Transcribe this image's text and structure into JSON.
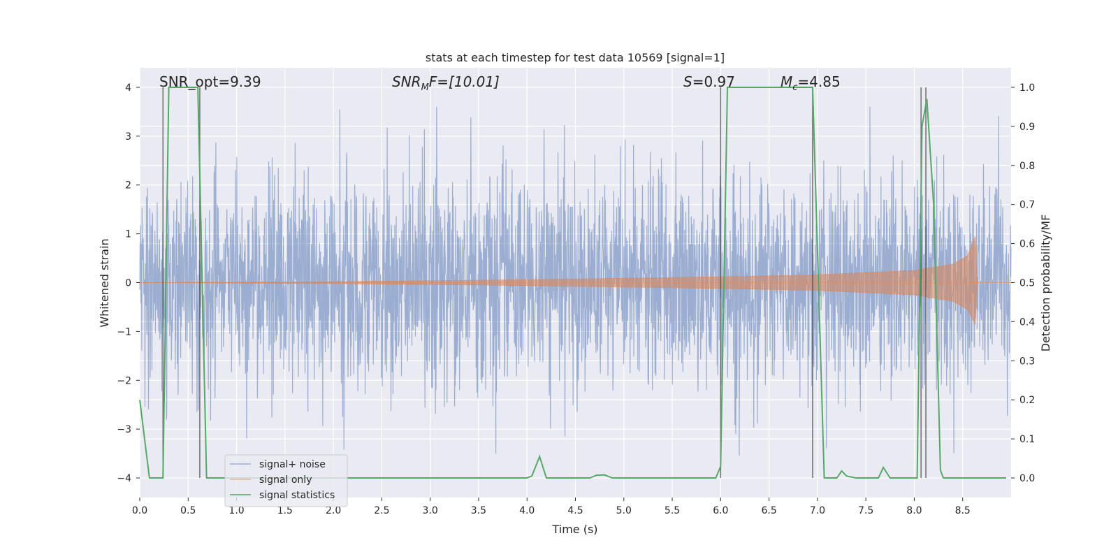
{
  "chart_data": {
    "type": "line",
    "title": "stats at each timestep for test data 10569 [signal=1]",
    "xlabel": "Time (s)",
    "ylabel_left": "Whitened strain",
    "ylabel_right": "Detection probability/MF",
    "xlim": [
      0.0,
      9.0
    ],
    "ylim_left": [
      -4.4,
      4.4
    ],
    "ylim_right": [
      -0.05,
      1.05
    ],
    "x_ticks": [
      "0.0",
      "0.5",
      "1.0",
      "1.5",
      "2.0",
      "2.5",
      "3.0",
      "3.5",
      "4.0",
      "4.5",
      "5.0",
      "5.5",
      "6.0",
      "6.5",
      "7.0",
      "7.5",
      "8.0",
      "8.5"
    ],
    "y_left_ticks": [
      "−4",
      "−3",
      "−2",
      "−1",
      "0",
      "1",
      "2",
      "3",
      "4"
    ],
    "y_right_ticks": [
      "0.0",
      "0.1",
      "0.2",
      "0.3",
      "0.4",
      "0.5",
      "0.6",
      "0.7",
      "0.8",
      "0.9",
      "1.0"
    ],
    "grid": true,
    "background": "#eaeaf2",
    "annotations": {
      "snr_opt": "SNR_opt=9.39",
      "snr_mf_base": "SNR",
      "snr_mf_sub": "M",
      "snr_mf_rest": "F=[10.01]",
      "s_sym": "S",
      "s_val": "=0.97",
      "mc_sym": "M",
      "mc_sub": "c",
      "mc_val": "=4.85"
    },
    "legend_position": "lower left",
    "series": [
      {
        "name": "signal+ noise",
        "color": "#4c72b0",
        "axis": "left",
        "description": "dense whitened strain noise, roughly ±1.6 envelope with spikes up to ±3.6, x from 0.0 to 9.0"
      },
      {
        "name": "signal only",
        "color": "#dd8452",
        "axis": "left",
        "envelope": [
          [
            0.0,
            0.0
          ],
          [
            2.0,
            0.02
          ],
          [
            4.0,
            0.06
          ],
          [
            6.0,
            0.12
          ],
          [
            7.0,
            0.16
          ],
          [
            8.0,
            0.25
          ],
          [
            8.4,
            0.38
          ],
          [
            8.55,
            0.55
          ],
          [
            8.63,
            0.95
          ],
          [
            8.65,
            0.0
          ]
        ]
      },
      {
        "name": "signal statistics",
        "color": "#55a868",
        "axis": "right",
        "points": [
          [
            0.0,
            0.2
          ],
          [
            0.05,
            0.1
          ],
          [
            0.1,
            0.0
          ],
          [
            0.24,
            0.0
          ],
          [
            0.3,
            1.0
          ],
          [
            0.6,
            1.0
          ],
          [
            0.69,
            0.0
          ],
          [
            4.0,
            0.0
          ],
          [
            4.05,
            0.005
          ],
          [
            4.13,
            0.055
          ],
          [
            4.2,
            0.0
          ],
          [
            4.65,
            0.0
          ],
          [
            4.72,
            0.007
          ],
          [
            4.8,
            0.008
          ],
          [
            4.88,
            0.0
          ],
          [
            5.95,
            0.0
          ],
          [
            6.0,
            0.03
          ],
          [
            6.07,
            1.0
          ],
          [
            6.95,
            1.0
          ],
          [
            7.07,
            0.0
          ],
          [
            7.2,
            0.0
          ],
          [
            7.25,
            0.018
          ],
          [
            7.3,
            0.005
          ],
          [
            7.4,
            0.0
          ],
          [
            7.63,
            0.0
          ],
          [
            7.68,
            0.027
          ],
          [
            7.75,
            0.0
          ],
          [
            8.03,
            0.0
          ],
          [
            8.08,
            0.9
          ],
          [
            8.13,
            0.97
          ],
          [
            8.2,
            0.7
          ],
          [
            8.27,
            0.02
          ],
          [
            8.3,
            0.0
          ],
          [
            8.95,
            0.0
          ]
        ]
      }
    ],
    "vertical_markers": [
      0.24,
      0.62,
      6.0,
      6.95,
      8.07,
      8.12
    ]
  }
}
